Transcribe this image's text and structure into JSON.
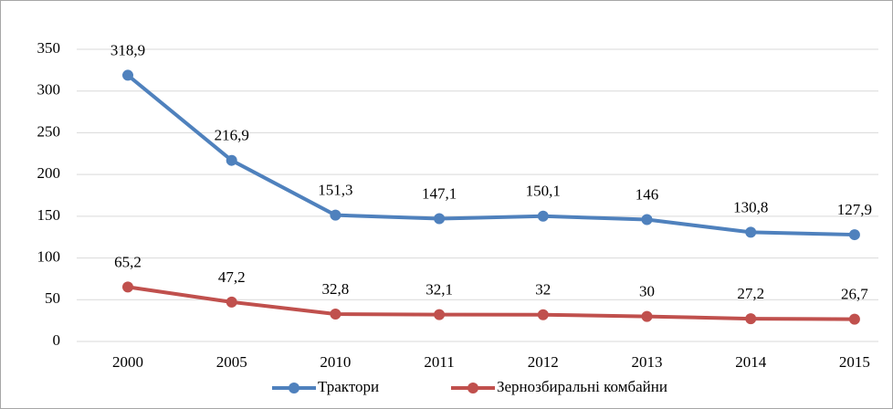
{
  "chart_data": {
    "type": "line",
    "categories": [
      "2000",
      "2005",
      "2010",
      "2011",
      "2012",
      "2013",
      "2014",
      "2015"
    ],
    "series": [
      {
        "name": "Трактори",
        "color": "#4f81bd",
        "values": [
          318.9,
          216.9,
          151.3,
          147.1,
          150.1,
          146,
          130.8,
          127.9
        ],
        "value_labels": [
          "318,9",
          "216,9",
          "151,3",
          "147,1",
          "150,1",
          "146",
          "130,8",
          "127,9"
        ]
      },
      {
        "name": "Зернозбиральні комбайни",
        "color": "#c0504d",
        "values": [
          65.2,
          47.2,
          32.8,
          32.1,
          32,
          30,
          27.2,
          26.7
        ],
        "value_labels": [
          "65,2",
          "47,2",
          "32,8",
          "32,1",
          "32",
          "30",
          "27,2",
          "26,7"
        ]
      }
    ],
    "ylim": [
      0,
      350
    ],
    "yticks": [
      0,
      50,
      100,
      150,
      200,
      250,
      300,
      350
    ],
    "grid": true,
    "legend": "bottom"
  }
}
